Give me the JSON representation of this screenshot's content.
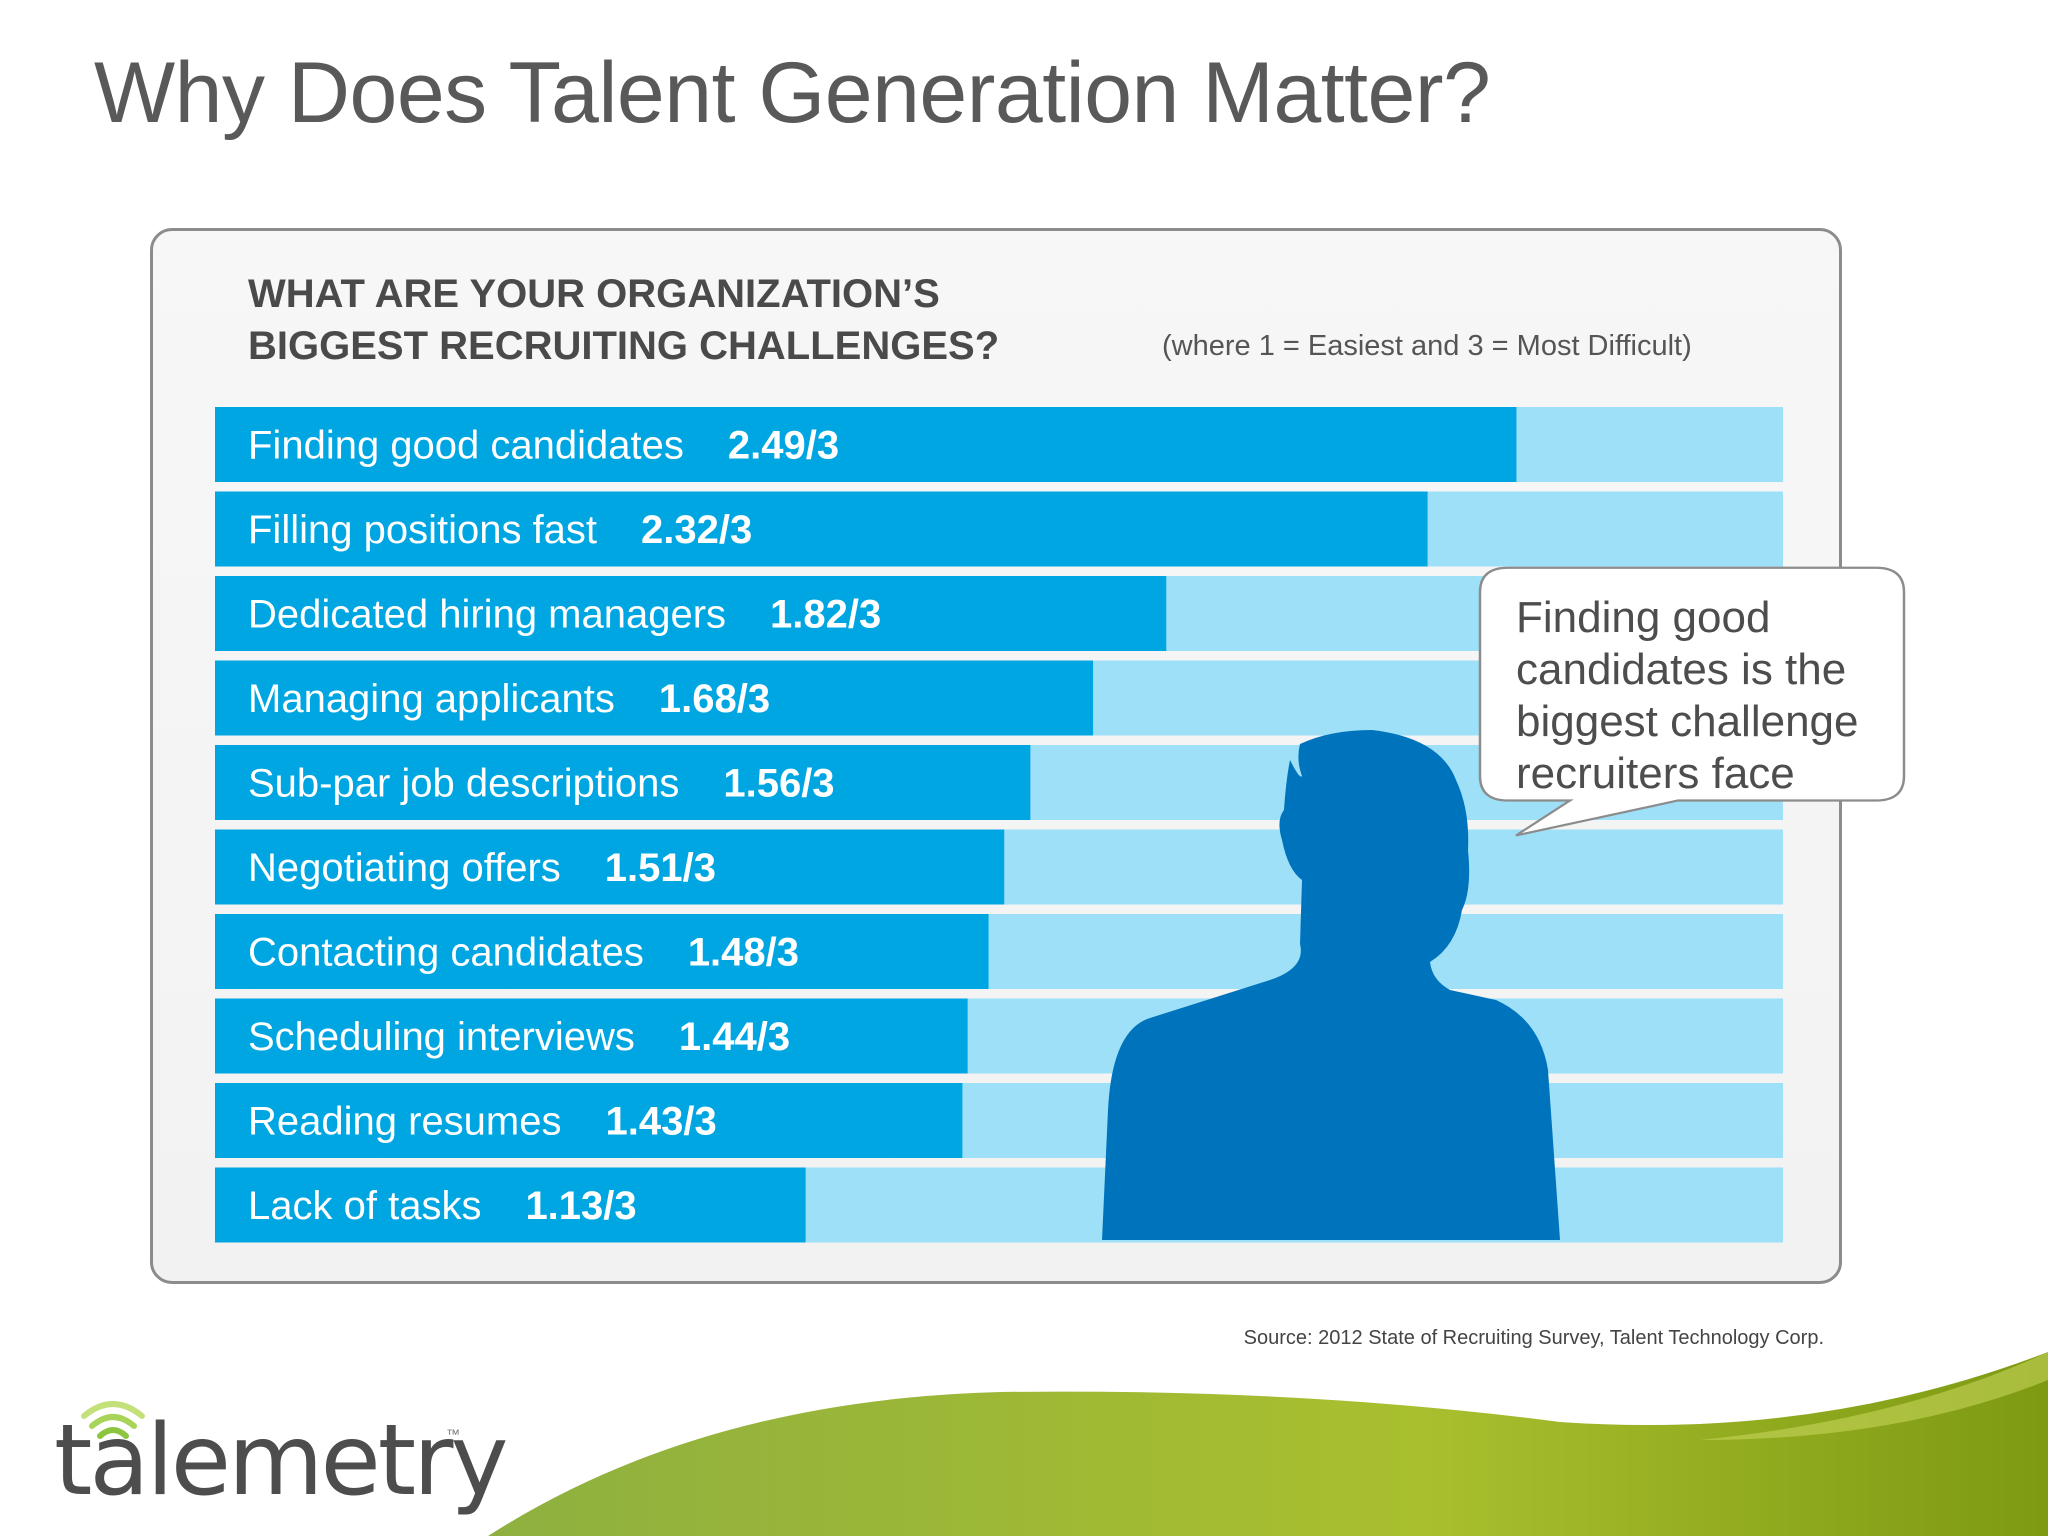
{
  "slide": {
    "title": "Why Does Talent Generation Matter?",
    "source": "Source: 2012 State of Recruiting Survey, Talent Technology Corp.",
    "logo_text": "talemetry",
    "logo_tm": "™"
  },
  "callout": {
    "text": "Finding good candidates is the biggest challenge recruiters face"
  },
  "colors": {
    "bar_fill": "#00a6e1",
    "bar_track": "#9de0f8",
    "silhouette": "#0073bd",
    "text_on_bar": "#ffffff"
  },
  "chart_data": {
    "type": "bar",
    "orientation": "horizontal",
    "title": "WHAT ARE YOUR ORGANIZATION’S BIGGEST RECRUITING CHALLENGES?",
    "title_lines": [
      "WHAT ARE YOUR ORGANIZATION’S",
      "BIGGEST RECRUITING CHALLENGES?"
    ],
    "subtitle": "(where 1 = Easiest and 3 = Most Difficult)",
    "xlim": [
      0,
      3
    ],
    "categories": [
      "Finding good candidates",
      "Filling positions fast",
      "Dedicated hiring managers",
      "Managing applicants",
      "Sub-par job descriptions",
      "Negotiating offers",
      "Contacting candidates",
      "Scheduling interviews",
      "Reading resumes",
      "Lack of tasks"
    ],
    "values": [
      2.49,
      2.32,
      1.82,
      1.68,
      1.56,
      1.51,
      1.48,
      1.44,
      1.43,
      1.13
    ],
    "value_labels": [
      "2.49/3",
      "2.32/3",
      "1.82/3",
      "1.68/3",
      "1.56/3",
      "1.51/3",
      "1.48/3",
      "1.44/3",
      "1.43/3",
      "1.13/3"
    ],
    "grid": false,
    "legend": "none"
  }
}
